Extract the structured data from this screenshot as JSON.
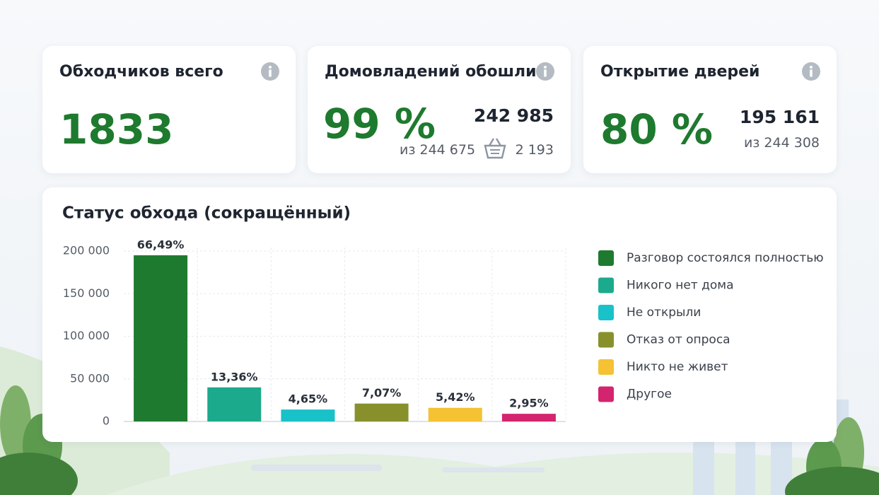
{
  "cards": [
    {
      "title": "Обходчиков всего",
      "value": "1833"
    },
    {
      "title": "Домовладений обошли",
      "value": "99 %",
      "count": "242 985",
      "of": "из 244 675",
      "extra": "2 193"
    },
    {
      "title": "Открытие дверей",
      "value": "80 %",
      "count": "195 161",
      "of": "из 244 308"
    }
  ],
  "chart_data": {
    "type": "bar",
    "title": "Статус обхода (сокращённый)",
    "categories": [
      "Разговор состоялся полностью",
      "Никого нет дома",
      "Не открыли",
      "Отказ от опроса",
      "Никто не живет",
      "Другое"
    ],
    "values": [
      195000,
      40000,
      14000,
      21000,
      16000,
      9000
    ],
    "percent_labels": [
      "66,49%",
      "13,36%",
      "4,65%",
      "7,07%",
      "5,42%",
      "2,95%"
    ],
    "colors": [
      "#1d7a2f",
      "#1caa8c",
      "#19c1c9",
      "#88902c",
      "#f4c232",
      "#d3246f"
    ],
    "ylim": [
      0,
      200000
    ],
    "yticks": [
      0,
      {
        "value": 50000,
        "label": "50 000"
      },
      {
        "value": 100000,
        "label": "100 000"
      },
      {
        "value": 150000,
        "label": "150 000"
      },
      {
        "value": 200000,
        "label": "200 000"
      }
    ],
    "grid": true,
    "legend": "right"
  }
}
